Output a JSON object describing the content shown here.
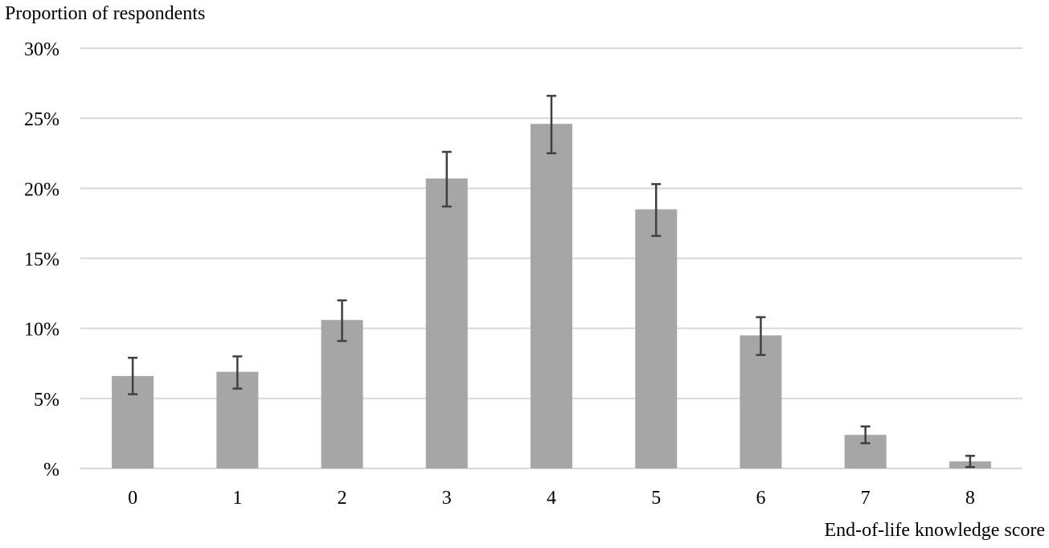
{
  "chart_data": {
    "type": "bar",
    "title": "",
    "ylabel": "Proportion of respondents",
    "xlabel": "End-of-life knowledge score",
    "categories": [
      "0",
      "1",
      "2",
      "3",
      "4",
      "5",
      "6",
      "7",
      "8"
    ],
    "values": [
      6.6,
      6.9,
      10.6,
      20.7,
      24.6,
      18.5,
      9.5,
      2.4,
      0.5
    ],
    "error_low": [
      5.3,
      5.7,
      9.1,
      18.7,
      22.5,
      16.6,
      8.1,
      1.8,
      0.1
    ],
    "error_high": [
      7.9,
      8.0,
      12.0,
      22.6,
      26.6,
      20.3,
      10.8,
      3.0,
      0.9
    ],
    "ylim": [
      0,
      30
    ],
    "y_ticks": [
      0,
      5,
      10,
      15,
      20,
      25,
      30
    ],
    "y_tick_labels": [
      "%",
      "5%",
      "10%",
      "15%",
      "20%",
      "25%",
      "30%"
    ],
    "grid": true,
    "bar_color": "#a6a6a6",
    "error_bar_color": "#404040",
    "grid_color": "#d9d9d9"
  }
}
